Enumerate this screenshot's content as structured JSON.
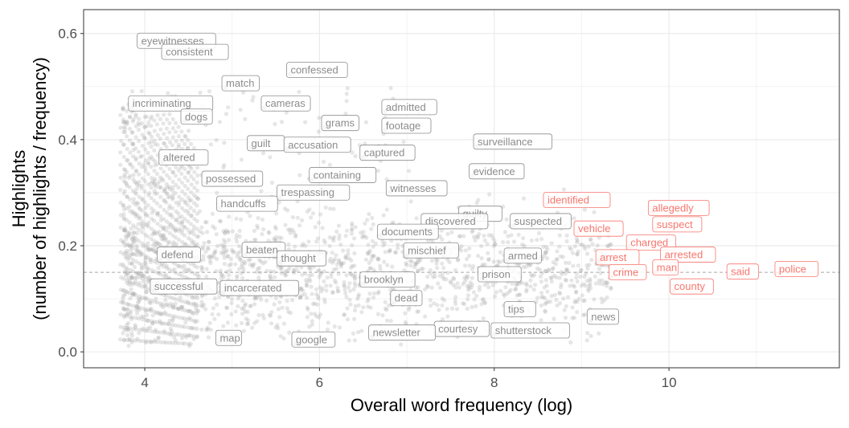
{
  "chart_data": {
    "type": "scatter",
    "title": "",
    "xlabel": "Overall word frequency (log)",
    "ylabel_lines": [
      "Highlights",
      "(number of highlights / frequency)"
    ],
    "xlim": [
      3.3,
      11.95
    ],
    "ylim": [
      -0.03,
      0.645
    ],
    "x_ticks": [
      4,
      6,
      8,
      10
    ],
    "y_ticks": [
      0.0,
      0.2,
      0.4,
      0.6
    ],
    "y_tick_labels": [
      "0.0",
      "0.2",
      "0.4",
      "0.6"
    ],
    "reference_line": {
      "y": 0.15,
      "style": "dashed"
    },
    "grid": true,
    "legend": "none",
    "colors": {
      "background_point": "#a6a6a6",
      "label_gray": "#8c8c8c",
      "label_red": "#f8766d",
      "reference_line": "#a6a6a6",
      "grid": "#ebebeb",
      "panel_border": "#333333"
    },
    "labeled_points": [
      {
        "word": "eyewitnesses",
        "x": 3.95,
        "y": 0.578,
        "group": "gray"
      },
      {
        "word": "consistent",
        "x": 4.23,
        "y": 0.557,
        "group": "gray"
      },
      {
        "word": "confessed",
        "x": 5.66,
        "y": 0.523,
        "group": "gray"
      },
      {
        "word": "match",
        "x": 4.92,
        "y": 0.498,
        "group": "gray"
      },
      {
        "word": "admitted",
        "x": 6.75,
        "y": 0.453,
        "group": "gray"
      },
      {
        "word": "incriminating",
        "x": 3.85,
        "y": 0.46,
        "group": "gray"
      },
      {
        "word": "cameras",
        "x": 5.37,
        "y": 0.46,
        "group": "gray"
      },
      {
        "word": "dogs",
        "x": 4.45,
        "y": 0.435,
        "group": "gray"
      },
      {
        "word": "grams",
        "x": 6.06,
        "y": 0.423,
        "group": "gray"
      },
      {
        "word": "footage",
        "x": 6.75,
        "y": 0.418,
        "group": "gray"
      },
      {
        "word": "surveillance",
        "x": 7.8,
        "y": 0.388,
        "group": "gray"
      },
      {
        "word": "guilt",
        "x": 5.21,
        "y": 0.385,
        "group": "gray"
      },
      {
        "word": "accusation",
        "x": 5.63,
        "y": 0.382,
        "group": "gray"
      },
      {
        "word": "captured",
        "x": 6.5,
        "y": 0.367,
        "group": "gray"
      },
      {
        "word": "altered",
        "x": 4.2,
        "y": 0.358,
        "group": "gray"
      },
      {
        "word": "evidence",
        "x": 7.75,
        "y": 0.332,
        "group": "gray"
      },
      {
        "word": "containing",
        "x": 5.92,
        "y": 0.325,
        "group": "gray"
      },
      {
        "word": "possessed",
        "x": 4.69,
        "y": 0.318,
        "group": "gray"
      },
      {
        "word": "witnesses",
        "x": 6.8,
        "y": 0.3,
        "group": "gray"
      },
      {
        "word": "trespassing",
        "x": 5.55,
        "y": 0.292,
        "group": "gray"
      },
      {
        "word": "identified",
        "x": 8.6,
        "y": 0.278,
        "group": "red"
      },
      {
        "word": "handcuffs",
        "x": 4.86,
        "y": 0.271,
        "group": "gray"
      },
      {
        "word": "allegedly",
        "x": 9.8,
        "y": 0.263,
        "group": "red"
      },
      {
        "word": "guilty",
        "x": 7.63,
        "y": 0.252,
        "group": "gray"
      },
      {
        "word": "discovered",
        "x": 7.2,
        "y": 0.238,
        "group": "gray"
      },
      {
        "word": "suspected",
        "x": 8.22,
        "y": 0.238,
        "group": "gray"
      },
      {
        "word": "suspect",
        "x": 9.85,
        "y": 0.232,
        "group": "red"
      },
      {
        "word": "vehicle",
        "x": 8.95,
        "y": 0.224,
        "group": "red"
      },
      {
        "word": "documents",
        "x": 6.7,
        "y": 0.218,
        "group": "gray"
      },
      {
        "word": "charged",
        "x": 9.55,
        "y": 0.198,
        "group": "red"
      },
      {
        "word": "mischief",
        "x": 7.0,
        "y": 0.183,
        "group": "gray"
      },
      {
        "word": "beaten",
        "x": 5.15,
        "y": 0.184,
        "group": "gray"
      },
      {
        "word": "arrested",
        "x": 9.94,
        "y": 0.175,
        "group": "red"
      },
      {
        "word": "defend",
        "x": 4.18,
        "y": 0.175,
        "group": "gray"
      },
      {
        "word": "armed",
        "x": 8.15,
        "y": 0.173,
        "group": "gray"
      },
      {
        "word": "arrest",
        "x": 9.2,
        "y": 0.17,
        "group": "red"
      },
      {
        "word": "thought",
        "x": 5.55,
        "y": 0.168,
        "group": "gray"
      },
      {
        "word": "man",
        "x": 9.85,
        "y": 0.151,
        "group": "red"
      },
      {
        "word": "police",
        "x": 11.25,
        "y": 0.148,
        "group": "red"
      },
      {
        "word": "said",
        "x": 10.7,
        "y": 0.143,
        "group": "red"
      },
      {
        "word": "crime",
        "x": 9.35,
        "y": 0.142,
        "group": "red"
      },
      {
        "word": "prison",
        "x": 7.85,
        "y": 0.138,
        "group": "gray"
      },
      {
        "word": "brooklyn",
        "x": 6.5,
        "y": 0.128,
        "group": "gray"
      },
      {
        "word": "county",
        "x": 10.05,
        "y": 0.115,
        "group": "red"
      },
      {
        "word": "successful",
        "x": 4.1,
        "y": 0.115,
        "group": "gray"
      },
      {
        "word": "incarcerated",
        "x": 4.9,
        "y": 0.112,
        "group": "gray"
      },
      {
        "word": "dead",
        "x": 6.85,
        "y": 0.093,
        "group": "gray"
      },
      {
        "word": "tips",
        "x": 8.15,
        "y": 0.072,
        "group": "gray"
      },
      {
        "word": "news",
        "x": 9.1,
        "y": 0.058,
        "group": "gray"
      },
      {
        "word": "courtesy",
        "x": 7.35,
        "y": 0.035,
        "group": "gray"
      },
      {
        "word": "shutterstock",
        "x": 8.0,
        "y": 0.032,
        "group": "gray"
      },
      {
        "word": "newsletter",
        "x": 6.6,
        "y": 0.028,
        "group": "gray"
      },
      {
        "word": "map",
        "x": 4.85,
        "y": 0.018,
        "group": "gray"
      },
      {
        "word": "google",
        "x": 5.72,
        "y": 0.015,
        "group": "gray"
      }
    ]
  }
}
